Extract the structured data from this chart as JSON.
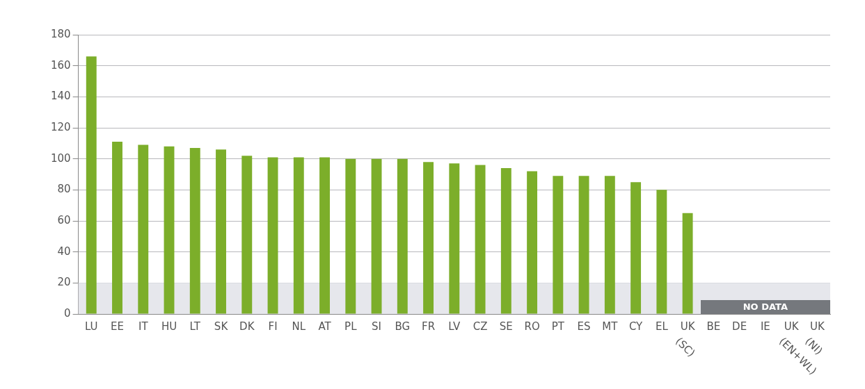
{
  "chart_data": {
    "type": "bar",
    "categories": [
      "LU",
      "EE",
      "IT",
      "HU",
      "LT",
      "SK",
      "DK",
      "FI",
      "NL",
      "AT",
      "PL",
      "SI",
      "BG",
      "FR",
      "LV",
      "CZ",
      "SE",
      "RO",
      "PT",
      "ES",
      "MT",
      "CY",
      "EL",
      "UK (SC)",
      "BE",
      "DE",
      "IE",
      "UK (EN+WL)",
      "UK (NI)"
    ],
    "values": [
      166,
      111,
      109,
      108,
      107,
      106,
      102,
      101,
      101,
      101,
      100,
      100,
      100,
      98,
      97,
      96,
      94,
      92,
      89,
      89,
      89,
      85,
      80,
      65,
      null,
      null,
      null,
      null,
      null
    ],
    "color": "#7cae2a",
    "ylim": [
      0,
      180
    ],
    "yticks": [
      0,
      20,
      40,
      60,
      80,
      100,
      120,
      140,
      160,
      180
    ],
    "grid": "y",
    "bands": [
      {
        "axis": "y",
        "from": 0,
        "to": 20,
        "color": "#e6e7ec"
      }
    ],
    "annotations": [
      "NO DATA"
    ]
  }
}
